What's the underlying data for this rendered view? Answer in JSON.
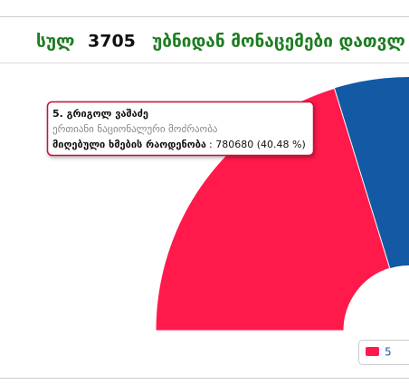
{
  "header": {
    "label": "სულ",
    "count": "3705",
    "text": "უბნიდან მონაცემები დათვლ"
  },
  "chart_data": {
    "type": "pie",
    "series": [
      {
        "name": "5",
        "candidate": "5. გრიგოლ ვაშაძე",
        "party": "ერთიანი ნაციონალური მოძრაობა",
        "color": "#ff1a4b",
        "values": [
          40.48
        ],
        "value_labels": [
          ": 780680 (40.48 %)"
        ]
      }
    ],
    "tooltip_label": "მიღებული ხმების რაოდენობა"
  }
}
